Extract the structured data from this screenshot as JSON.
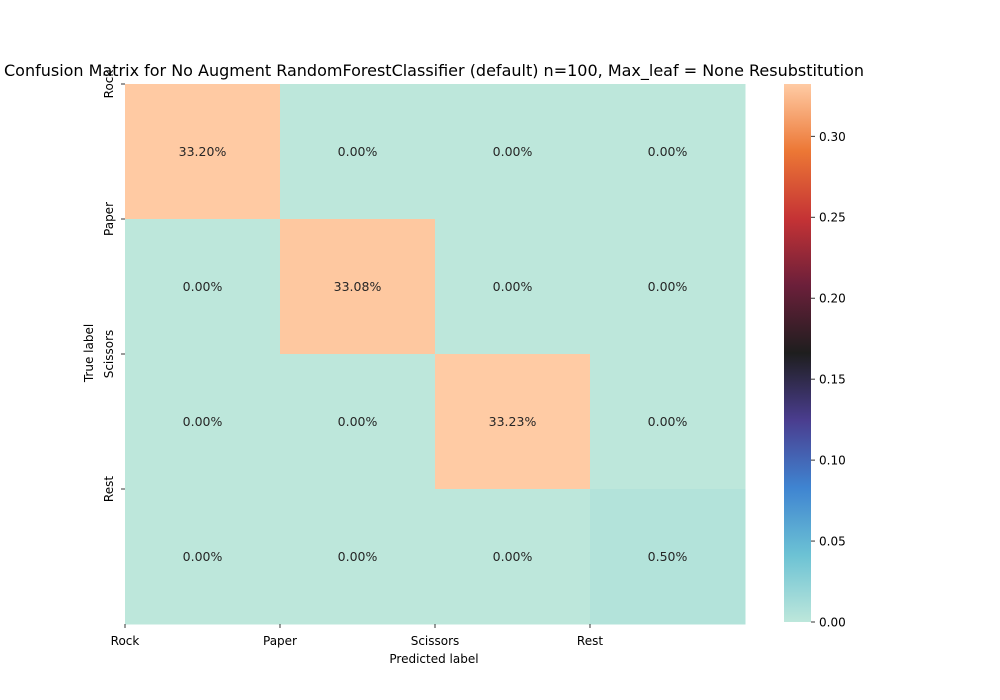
{
  "chart_data": {
    "type": "heatmap",
    "title": "Confusion Matrix for No Augment RandomForestClassifier (default) n=100, Max_leaf = None Resubstitution",
    "xlabel": "Predicted label",
    "ylabel": "True label",
    "x_tick_labels": [
      "Rock",
      "Paper",
      "Scissors",
      "Rest"
    ],
    "y_tick_labels": [
      "Rock",
      "Paper",
      "Scissors",
      "Rest"
    ],
    "values": [
      [
        0.332,
        0.0,
        0.0,
        0.0
      ],
      [
        0.0,
        0.3308,
        0.0,
        0.0
      ],
      [
        0.0,
        0.0,
        0.3323,
        0.0
      ],
      [
        0.0,
        0.0,
        0.0,
        0.005
      ]
    ],
    "cell_labels": [
      [
        "33.20%",
        "0.00%",
        "0.00%",
        "0.00%"
      ],
      [
        "0.00%",
        "33.08%",
        "0.00%",
        "0.00%"
      ],
      [
        "0.00%",
        "0.00%",
        "33.23%",
        "0.00%"
      ],
      [
        "0.00%",
        "0.00%",
        "0.00%",
        "0.50%"
      ]
    ],
    "colorbar": {
      "range": [
        0,
        0.3323
      ],
      "ticks": [
        0.0,
        0.05,
        0.1,
        0.15,
        0.2,
        0.25,
        0.3
      ],
      "tick_labels": [
        "0.00",
        "0.05",
        "0.10",
        "0.15",
        "0.20",
        "0.25",
        "0.30"
      ],
      "colormap": "icefire",
      "colormap_stops": [
        "#bde7db",
        "#6cc2d4",
        "#3f84d1",
        "#4a3d8f",
        "#1e1e1e",
        "#6b1f3a",
        "#c53335",
        "#ec7735",
        "#ffcba4"
      ]
    },
    "grid": false,
    "legend": "colorbar-right"
  }
}
